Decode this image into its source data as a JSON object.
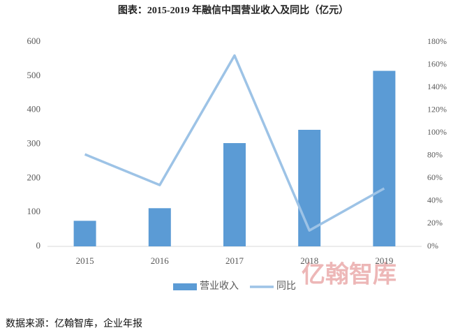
{
  "chart_data": {
    "type": "combo",
    "title": "图表：2015-2019 年融信中国营业收入及同比（亿元）",
    "source": "数据来源：亿翰智库，企业年报",
    "watermark": "亿翰智库",
    "categories": [
      "2015",
      "2016",
      "2017",
      "2018",
      "2019"
    ],
    "series": [
      {
        "name": "营业收入",
        "type": "bar",
        "color": "#5b9bd5",
        "values": [
          75,
          112,
          303,
          342,
          515
        ]
      },
      {
        "name": "同比",
        "type": "line",
        "axis": "y2",
        "color": "#9dc3e6",
        "values": [
          81,
          54,
          168,
          14,
          51
        ]
      }
    ],
    "ylim": [
      0,
      600
    ],
    "yticks": [
      0,
      100,
      200,
      300,
      400,
      500,
      600
    ],
    "y2lim": [
      0,
      180
    ],
    "y2ticks": [
      {
        "value": 0,
        "label": "0%"
      },
      {
        "value": 20,
        "label": "20%"
      },
      {
        "value": 40,
        "label": "40%"
      },
      {
        "value": 60,
        "label": "60%"
      },
      {
        "value": 80,
        "label": "80%"
      },
      {
        "value": 100,
        "label": "100%"
      },
      {
        "value": 120,
        "label": "120%"
      },
      {
        "value": 140,
        "label": "140%"
      },
      {
        "value": 160,
        "label": "160%"
      },
      {
        "value": 180,
        "label": "180%"
      }
    ],
    "legend": "bottom"
  }
}
